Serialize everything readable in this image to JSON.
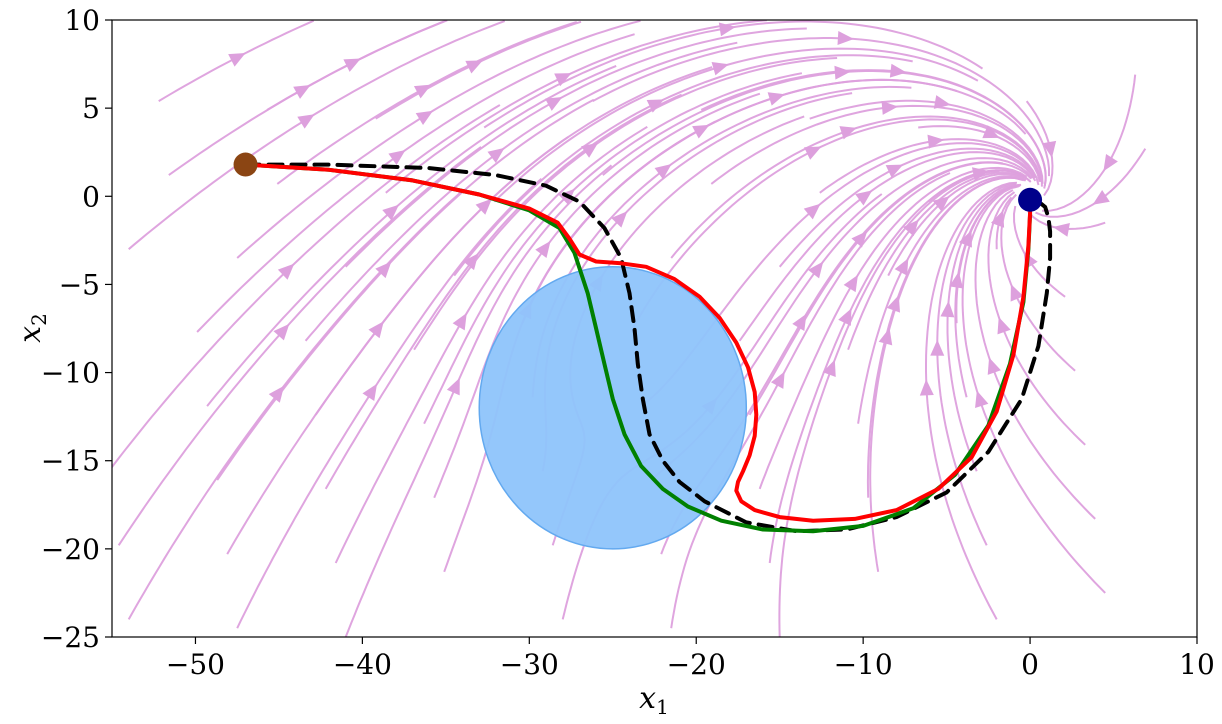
{
  "chart_data": {
    "type": "line",
    "xlabel": "x",
    "xlabel_sub": "1",
    "ylabel": "x",
    "ylabel_sub": "2",
    "xlim": [
      -55,
      10
    ],
    "ylim": [
      -25,
      10
    ],
    "xticks": [
      -50,
      -40,
      -30,
      -20,
      -10,
      0,
      10
    ],
    "xtick_labels": [
      "−50",
      "−40",
      "−30",
      "−20",
      "−10",
      "0",
      "10"
    ],
    "yticks": [
      10,
      5,
      0,
      -5,
      -10,
      -15,
      -20,
      -25
    ],
    "ytick_labels": [
      "10",
      "5",
      "0",
      "−5",
      "−10",
      "−15",
      "−20",
      "−25"
    ],
    "grid": false,
    "colors": {
      "streamline": "#dda0dd",
      "obstacle_fill": "#8ec4fb",
      "obstacle_edge": "#63a9ef",
      "start_marker": "#8b4513",
      "goal_marker": "#00008b",
      "reference": "#000000",
      "green_path": "#008000",
      "red_path": "#ff0000"
    },
    "obstacle": {
      "center": [
        -25,
        -12
      ],
      "radius": 8
    },
    "start_point": [
      -47,
      1.8
    ],
    "goal_point": [
      0,
      -0.2
    ],
    "series": [
      {
        "style": "dashed",
        "color": "#000000",
        "x": [
          -47,
          -42,
          -36,
          -32,
          -29,
          -27,
          -25.5,
          -24.5,
          -24,
          -23.7,
          -23.5,
          -23.2,
          -22.8,
          -22,
          -21,
          -19.5,
          -17,
          -14,
          -11,
          -8,
          -5,
          -2.5,
          -0.5,
          0.5,
          1,
          1.2,
          1.2,
          1.1,
          0.9,
          0.5,
          0
        ],
        "y": [
          1.8,
          1.8,
          1.6,
          1.2,
          0.6,
          -0.3,
          -1.8,
          -3.5,
          -5.5,
          -7.5,
          -9.5,
          -11.5,
          -13.5,
          -15,
          -16.2,
          -17.3,
          -18.5,
          -19,
          -18.9,
          -18.2,
          -16.8,
          -14.5,
          -11.5,
          -8.5,
          -5.5,
          -3.5,
          -2,
          -1.2,
          -0.6,
          -0.3,
          -0.2
        ]
      },
      {
        "style": "solid",
        "color": "#008000",
        "x": [
          -47,
          -42,
          -37,
          -33,
          -30,
          -28.2,
          -27.3,
          -26.5,
          -26,
          -25.5,
          -25,
          -24.3,
          -23.3,
          -22,
          -20.5,
          -18.5,
          -16,
          -13,
          -10,
          -7,
          -4.5,
          -2.5,
          -1.2,
          -0.4,
          -0.1,
          0
        ],
        "y": [
          1.8,
          1.5,
          0.9,
          0.1,
          -0.8,
          -1.8,
          -3.2,
          -5.5,
          -7.5,
          -9.5,
          -11.5,
          -13.5,
          -15.3,
          -16.6,
          -17.6,
          -18.4,
          -18.9,
          -19,
          -18.7,
          -17.7,
          -15.8,
          -13,
          -9.5,
          -6,
          -3,
          -1
        ]
      },
      {
        "style": "solid",
        "color": "#ff0000",
        "x": [
          -47,
          -42,
          -37,
          -33,
          -30,
          -28.3,
          -27.6,
          -27,
          -26,
          -24.5,
          -23,
          -21.3,
          -19.8,
          -18.6,
          -17.6,
          -16.9,
          -16.5,
          -16.4,
          -16.5,
          -16.8,
          -17.2,
          -17.5,
          -17.6,
          -17.3,
          -16.5,
          -15,
          -13,
          -10.5,
          -8,
          -5.5,
          -3.5,
          -2,
          -1,
          -0.4,
          -0.1,
          0
        ],
        "y": [
          1.8,
          1.5,
          0.9,
          0.1,
          -0.7,
          -1.5,
          -2.4,
          -3.3,
          -3.7,
          -3.8,
          -4.0,
          -4.7,
          -5.7,
          -6.9,
          -8.3,
          -9.7,
          -11.1,
          -12.4,
          -13.6,
          -14.7,
          -15.6,
          -16.2,
          -16.7,
          -17.3,
          -17.8,
          -18.2,
          -18.4,
          -18.3,
          -17.8,
          -16.6,
          -14.8,
          -12.2,
          -9,
          -5.7,
          -2.8,
          -0.9
        ]
      }
    ]
  }
}
